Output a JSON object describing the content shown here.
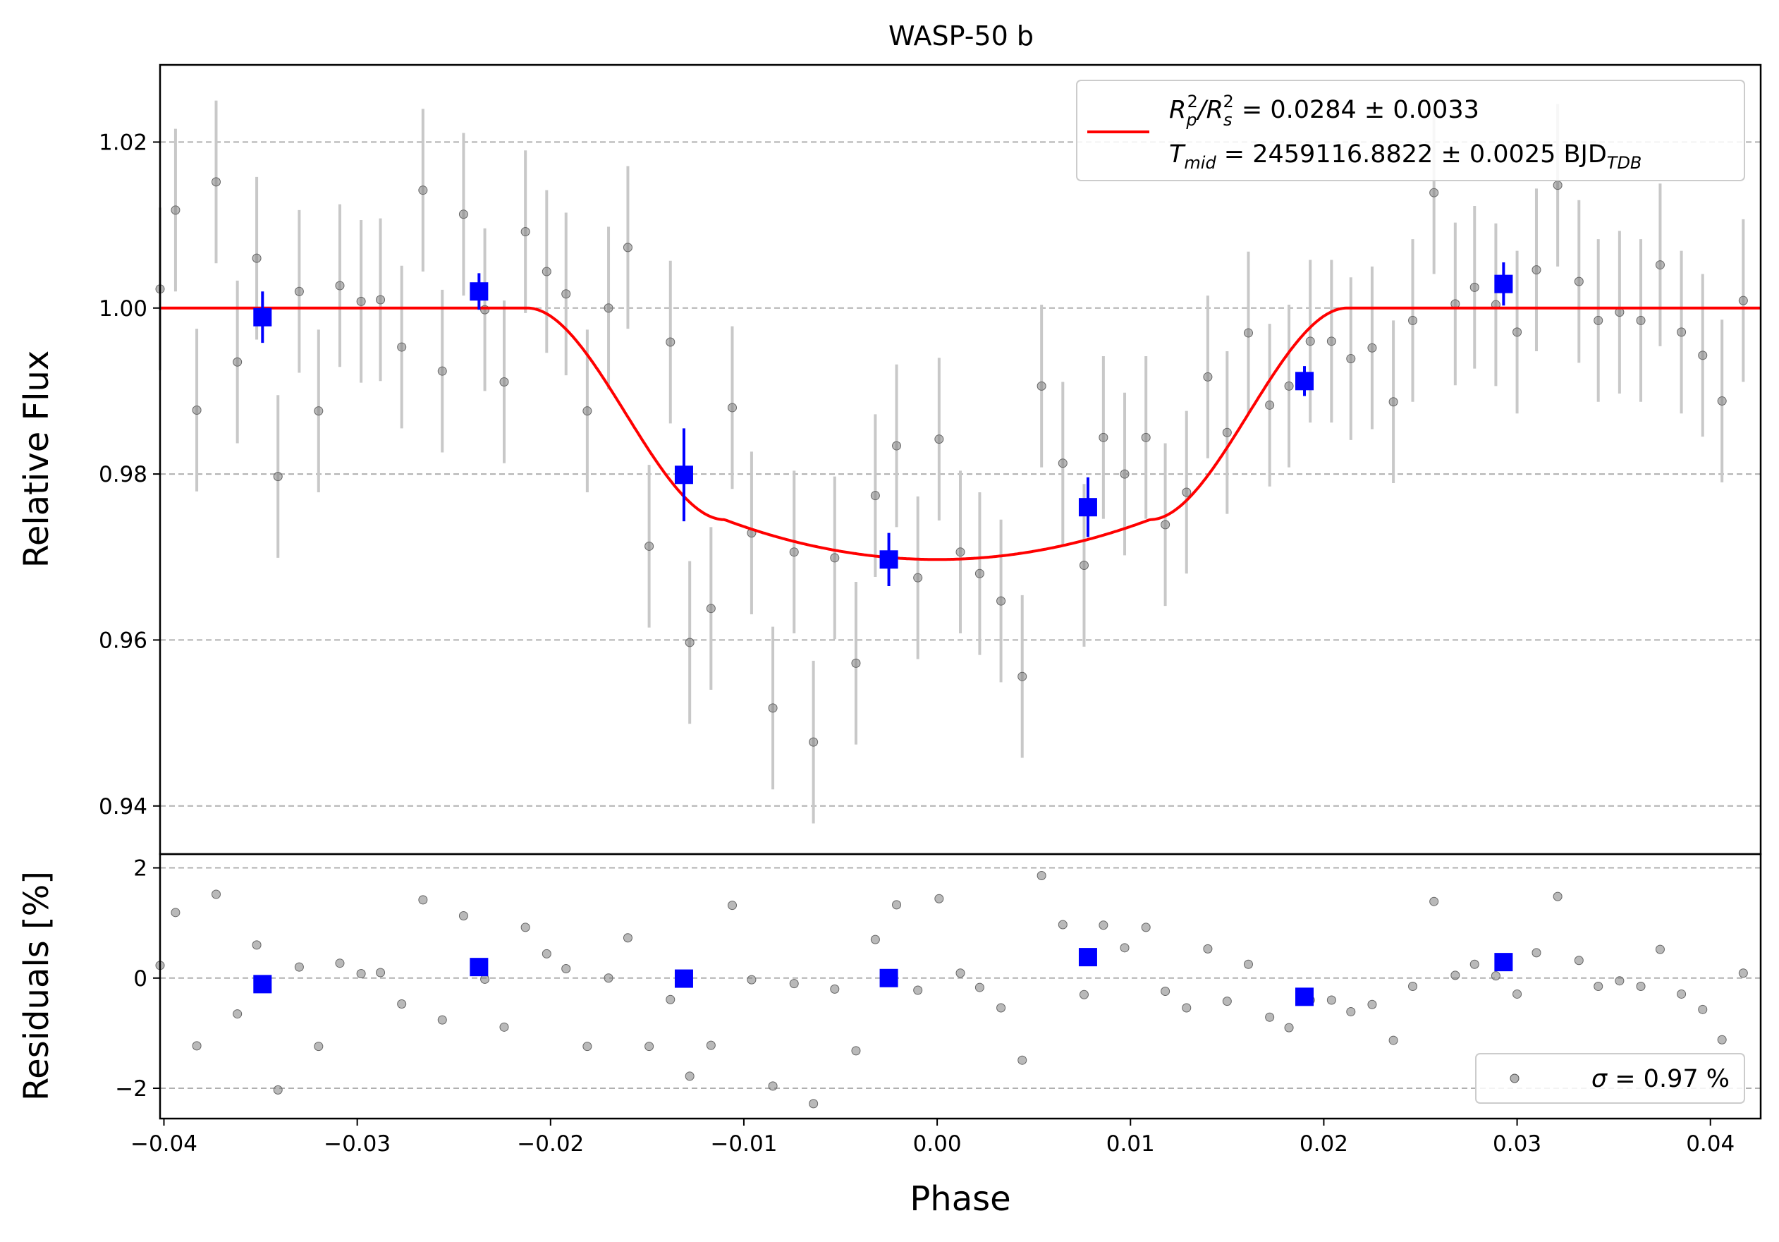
{
  "chart_data": {
    "type": "scatter",
    "title": "WASP-50 b",
    "xlabel": "Phase",
    "colors": {
      "model": "#ff0000",
      "binned": "#0000ff",
      "raw": "#808080",
      "raw_errorbar": "#c8c8c8",
      "grid": "#b0b0b0"
    },
    "x_ticks": [
      "−0.04",
      "−0.03",
      "−0.02",
      "−0.01",
      "0.00",
      "0.01",
      "0.02",
      "0.03",
      "0.04"
    ],
    "x_tick_values": [
      -0.04,
      -0.03,
      -0.02,
      -0.01,
      0.0,
      0.01,
      0.02,
      0.03,
      0.04
    ],
    "xlim": [
      -0.0402,
      0.0426
    ],
    "top_panel": {
      "ylabel": "Relative Flux",
      "ylim": [
        0.9342,
        1.0293
      ],
      "y_ticks": [
        "0.94",
        "0.96",
        "0.98",
        "1.00",
        "1.02"
      ],
      "y_tick_values": [
        0.94,
        0.96,
        0.98,
        1.0,
        1.02
      ],
      "grid": "horizontal dashed",
      "legend": {
        "placement": "upper-right",
        "line1_pre": "R",
        "line1_sub1": "p",
        "line1_sup1": "2",
        "line1_slash": "/R",
        "line1_sub2": "s",
        "line1_sup2": "2",
        "line1_value": " = 0.0284 ± 0.0033",
        "line2_pre": "T",
        "line2_sub": "mid",
        "line2_value": " = 2459116.8822 ± 0.0025 BJD",
        "line2_sub2": "TDB"
      },
      "raw_series": {
        "x": [
          -0.0402,
          -0.0394,
          -0.0383,
          -0.0373,
          -0.0362,
          -0.0352,
          -0.0341,
          -0.033,
          -0.032,
          -0.0309,
          -0.0298,
          -0.0288,
          -0.0277,
          -0.0266,
          -0.0256,
          -0.0245,
          -0.0234,
          -0.0224,
          -0.0213,
          -0.0202,
          -0.0192,
          -0.0181,
          -0.017,
          -0.016,
          -0.0149,
          -0.0138,
          -0.0128,
          -0.0117,
          -0.0106,
          -0.0096,
          -0.0085,
          -0.0074,
          -0.0064,
          -0.0053,
          -0.0042,
          -0.0032,
          -0.0021,
          -0.001,
          0.0001,
          0.0012,
          0.0022,
          0.0033,
          0.0044,
          0.0054,
          0.0065,
          0.0076,
          0.0086,
          0.0097,
          0.0108,
          0.0118,
          0.0129,
          0.014,
          0.015,
          0.0161,
          0.0172,
          0.0182,
          0.0193,
          0.0204,
          0.0214,
          0.0225,
          0.0236,
          0.0246,
          0.0257,
          0.0268,
          0.0278,
          0.0289,
          0.03,
          0.031,
          0.0321,
          0.0332,
          0.0342,
          0.0353,
          0.0364,
          0.0374,
          0.0385,
          0.0396,
          0.0406,
          0.0417
        ],
        "y": [
          1.0023,
          1.0118,
          0.9877,
          1.0152,
          0.9935,
          1.006,
          0.9797,
          1.002,
          0.9876,
          1.0027,
          1.0008,
          1.001,
          0.9953,
          1.0142,
          0.9924,
          1.0113,
          0.9998,
          0.9911,
          1.0092,
          1.0044,
          1.0017,
          0.9876,
          1.0,
          1.0073,
          0.9713,
          0.9959,
          0.9597,
          0.9638,
          0.988,
          0.9729,
          0.9518,
          0.9706,
          0.9477,
          0.9699,
          0.9572,
          0.9774,
          0.9834,
          0.9675,
          0.9842,
          0.9706,
          0.968,
          0.9647,
          0.9556,
          0.9906,
          0.9813,
          0.969,
          0.9844,
          0.98,
          0.9844,
          0.9739,
          0.9778,
          0.9917,
          0.985,
          0.997,
          0.9883,
          0.9906,
          0.996,
          0.996,
          0.9939,
          0.9952,
          0.9887,
          0.9985,
          1.0139,
          1.0005,
          1.0025,
          1.0004,
          0.9971,
          1.0046,
          1.0148,
          1.0032,
          0.9985,
          0.9995,
          0.9985,
          1.0052,
          0.9971,
          0.9943,
          0.9888,
          1.0009
        ],
        "yerr": 0.0098
      },
      "binned_series": {
        "x": [
          -0.0349,
          -0.0237,
          -0.0131,
          -0.0025,
          0.0078,
          0.019,
          0.0293
        ],
        "y": [
          0.9989,
          1.002,
          0.9799,
          0.9697,
          0.976,
          0.9912,
          1.0029
        ],
        "yerr": [
          0.0031,
          0.0022,
          0.0056,
          0.0032,
          0.0036,
          0.0018,
          0.0026
        ]
      },
      "model_params": {
        "depth": 0.0303,
        "t1": 0.0212,
        "t2": 0.011,
        "limb_darkening_factor": 0.0048
      }
    },
    "bottom_panel": {
      "ylabel": "Residuals [%]",
      "ylim": [
        -2.55,
        2.25
      ],
      "y_ticks": [
        "−2",
        "0",
        "2"
      ],
      "y_tick_values": [
        -2,
        0,
        2
      ],
      "grid": "horizontal dashed",
      "legend": {
        "placement": "lower-right",
        "label_sigma": "σ",
        "label_value": " = 0.97 %"
      },
      "raw_residuals": [
        0.23,
        1.19,
        -1.23,
        1.52,
        -0.65,
        0.6,
        -2.03,
        0.2,
        -1.24,
        0.27,
        0.08,
        0.1,
        -0.47,
        1.42,
        -0.76,
        1.13,
        -0.02,
        -0.89,
        0.92,
        0.44,
        0.17,
        -1.24,
        0.0,
        0.73,
        -1.24,
        -0.39,
        -1.78,
        -1.22,
        1.32,
        -0.03,
        -1.96,
        -0.1,
        -2.28,
        -0.2,
        -1.32,
        0.7,
        1.33,
        -0.22,
        1.44,
        0.09,
        -0.17,
        -0.54,
        -1.49,
        1.86,
        0.97,
        -0.3,
        0.96,
        0.55,
        0.92,
        -0.24,
        -0.54,
        0.53,
        -0.42,
        0.25,
        -0.71,
        -0.9,
        -0.4,
        -0.4,
        -0.61,
        -0.48,
        -1.13,
        -0.15,
        1.39,
        0.05,
        0.25,
        0.04,
        -0.29,
        0.46,
        1.48,
        0.32,
        -0.15,
        -0.05,
        -0.15,
        0.52,
        -0.29,
        -0.57,
        -1.12,
        0.09
      ],
      "binned_residuals": [
        -0.11,
        0.2,
        -0.01,
        0.0,
        0.38,
        -0.34,
        0.29
      ]
    }
  }
}
